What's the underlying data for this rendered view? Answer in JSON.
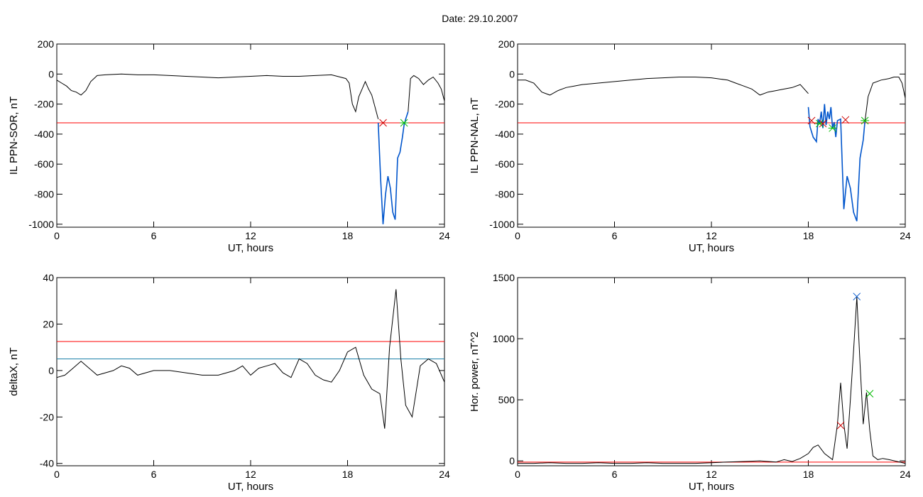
{
  "header": {
    "date_label": "Date:  29.10.2007"
  },
  "chart_data": [
    {
      "id": "il-ppn-sor",
      "type": "line",
      "ylabel": "IL PPN-SOR, nT",
      "xlabel": "UT, hours",
      "xlim": [
        0,
        24
      ],
      "ylim": [
        -1020,
        200
      ],
      "xticks": [
        0,
        6,
        12,
        18,
        24
      ],
      "yticks": [
        -1000,
        -800,
        -600,
        -400,
        -200,
        0,
        200
      ],
      "threshold": {
        "value": -325,
        "color": "#ff0000"
      },
      "series": [
        {
          "color": "#000000",
          "x": [
            0,
            0.3,
            0.6,
            0.9,
            1.2,
            1.5,
            1.8,
            2.1,
            2.5,
            3,
            4,
            5,
            6,
            7,
            8,
            9,
            10,
            11,
            12,
            13,
            14,
            15,
            16,
            17,
            17.9,
            18.1,
            18.3,
            18.5,
            18.7,
            18.9,
            19.1,
            19.3,
            19.5,
            19.7,
            19.9
          ],
          "y": [
            -40,
            -60,
            -80,
            -110,
            -120,
            -140,
            -110,
            -50,
            -10,
            -5,
            0,
            -5,
            -5,
            -10,
            -15,
            -20,
            -25,
            -20,
            -15,
            -10,
            -15,
            -15,
            -10,
            -5,
            -30,
            -60,
            -200,
            -250,
            -150,
            -100,
            -50,
            -100,
            -140,
            -220,
            -300
          ]
        },
        {
          "color": "#0055cc",
          "x": [
            19.9,
            20.05,
            20.2,
            20.35,
            20.5,
            20.65,
            20.8,
            20.95,
            21.1,
            21.25,
            21.4,
            21.5,
            21.6,
            21.75
          ],
          "y": [
            -325,
            -700,
            -1000,
            -800,
            -680,
            -760,
            -920,
            -970,
            -560,
            -520,
            -420,
            -340,
            -300,
            -250
          ]
        },
        {
          "color": "#000000",
          "x": [
            21.75,
            21.9,
            22.1,
            22.4,
            22.7,
            23,
            23.3,
            23.6,
            23.8,
            24
          ],
          "y": [
            -250,
            -30,
            -10,
            -30,
            -70,
            -40,
            -20,
            -60,
            -100,
            -180
          ]
        }
      ],
      "markers": [
        {
          "x": 20.2,
          "y": -325,
          "symbol": "x",
          "color": "#cc0000"
        },
        {
          "x": 21.5,
          "y": -325,
          "symbol": "star",
          "color": "#00bb00"
        }
      ]
    },
    {
      "id": "il-ppn-nal",
      "type": "line",
      "ylabel": "IL PPN-NAL, nT",
      "xlabel": "UT, hours",
      "xlim": [
        0,
        24
      ],
      "ylim": [
        -1020,
        200
      ],
      "xticks": [
        0,
        6,
        12,
        18,
        24
      ],
      "yticks": [
        -1000,
        -800,
        -600,
        -400,
        -200,
        0,
        200
      ],
      "threshold": {
        "value": -325,
        "color": "#ff0000"
      },
      "series": [
        {
          "color": "#000000",
          "x": [
            0,
            0.5,
            1,
            1.5,
            2,
            2.5,
            3,
            3.5,
            4,
            5,
            6,
            7,
            8,
            9,
            10,
            11,
            12,
            13,
            13.5,
            14,
            14.5,
            15,
            15.5,
            16,
            16.5,
            17,
            17.5,
            18
          ],
          "y": [
            -40,
            -40,
            -60,
            -120,
            -140,
            -110,
            -90,
            -80,
            -70,
            -60,
            -50,
            -40,
            -30,
            -25,
            -20,
            -20,
            -25,
            -40,
            -60,
            -80,
            -100,
            -140,
            -120,
            -110,
            -100,
            -90,
            -70,
            -130
          ]
        },
        {
          "color": "#0055cc",
          "x": [
            18,
            18.1,
            18.3,
            18.5,
            18.6,
            18.7,
            18.8,
            18.9,
            19,
            19.1,
            19.2,
            19.3,
            19.4,
            19.5,
            19.6,
            19.7,
            19.8,
            20,
            20.2,
            20.4,
            20.6,
            20.8,
            21,
            21.2,
            21.4,
            21.5
          ],
          "y": [
            -220,
            -350,
            -420,
            -450,
            -300,
            -330,
            -250,
            -360,
            -200,
            -340,
            -250,
            -300,
            -220,
            -360,
            -320,
            -420,
            -310,
            -300,
            -900,
            -680,
            -760,
            -920,
            -980,
            -560,
            -440,
            -320
          ]
        },
        {
          "color": "#000000",
          "x": [
            21.5,
            21.7,
            22,
            22.5,
            23,
            23.3,
            23.6,
            23.8,
            24
          ],
          "y": [
            -320,
            -150,
            -60,
            -40,
            -30,
            -20,
            -20,
            -60,
            -160
          ]
        }
      ],
      "markers": [
        {
          "x": 18.2,
          "y": -310,
          "symbol": "x",
          "color": "#cc0000"
        },
        {
          "x": 18.7,
          "y": -330,
          "symbol": "star",
          "color": "#00bb00"
        },
        {
          "x": 18.9,
          "y": -330,
          "symbol": "x",
          "color": "#cc0000"
        },
        {
          "x": 19.5,
          "y": -360,
          "symbol": "star",
          "color": "#00bb00"
        },
        {
          "x": 20.3,
          "y": -305,
          "symbol": "x",
          "color": "#cc0000"
        },
        {
          "x": 21.5,
          "y": -310,
          "symbol": "star",
          "color": "#00bb00"
        }
      ]
    },
    {
      "id": "deltax",
      "type": "line",
      "ylabel": "deltaX, nT",
      "xlabel": "UT, hours",
      "xlim": [
        0,
        24
      ],
      "ylim": [
        -41,
        40
      ],
      "xticks": [
        0,
        6,
        12,
        18,
        24
      ],
      "yticks": [
        -40,
        -20,
        0,
        20,
        40
      ],
      "threshold": {
        "value": 12.5,
        "color": "#ff0000"
      },
      "threshold2": {
        "value": 5,
        "color": "#1a7fa8"
      },
      "series": [
        {
          "color": "#000000",
          "x": [
            0,
            0.5,
            1,
            1.5,
            2,
            2.5,
            3,
            3.5,
            4,
            4.5,
            5,
            5.5,
            6,
            7,
            8,
            9,
            10,
            11,
            11.5,
            12,
            12.5,
            13,
            13.5,
            14,
            14.5,
            15,
            15.5,
            16,
            16.5,
            17,
            17.5,
            18,
            18.5,
            19,
            19.5,
            20,
            20.3,
            20.6,
            21,
            21.3,
            21.6,
            22,
            22.5,
            23,
            23.5,
            24
          ],
          "y": [
            -3,
            -2,
            1,
            4,
            1,
            -2,
            -1,
            0,
            2,
            1,
            -2,
            -1,
            0,
            0,
            -1,
            -2,
            -2,
            0,
            2,
            -2,
            1,
            2,
            3,
            -1,
            -3,
            5,
            3,
            -2,
            -4,
            -5,
            0,
            8,
            10,
            -2,
            -8,
            -10,
            -25,
            10,
            35,
            5,
            -15,
            -20,
            2,
            5,
            3,
            -5
          ]
        }
      ],
      "markers": []
    },
    {
      "id": "hor-power",
      "type": "line",
      "ylabel": "Hor. power, nT^2",
      "xlabel": "UT, hours",
      "xlim": [
        0,
        24
      ],
      "ylim": [
        -40,
        1500
      ],
      "xticks": [
        0,
        6,
        12,
        18,
        24
      ],
      "yticks": [
        0,
        500,
        1000,
        1500
      ],
      "threshold": {
        "value": -10,
        "color": "#ff0000"
      },
      "series": [
        {
          "color": "#000000",
          "x": [
            0,
            1,
            2,
            3,
            4,
            5,
            6,
            7,
            8,
            9,
            10,
            11,
            12,
            13,
            14,
            15,
            16,
            16.5,
            17,
            17.5,
            18,
            18.3,
            18.6,
            19,
            19.5,
            19.8,
            20,
            20.2,
            20.4,
            20.6,
            20.8,
            21,
            21.2,
            21.4,
            21.6,
            21.8,
            22,
            22.3,
            22.6,
            23,
            23.5,
            24
          ],
          "y": [
            -20,
            -20,
            -15,
            -20,
            -20,
            -15,
            -20,
            -20,
            -15,
            -20,
            -20,
            -20,
            -15,
            -10,
            -5,
            0,
            -10,
            10,
            -5,
            20,
            60,
            110,
            130,
            60,
            10,
            300,
            640,
            300,
            100,
            500,
            900,
            1340,
            800,
            300,
            560,
            250,
            40,
            10,
            20,
            10,
            -5,
            -20
          ]
        }
      ],
      "markers": [
        {
          "x": 20.0,
          "y": 290,
          "symbol": "x",
          "color": "#cc0000"
        },
        {
          "x": 21.0,
          "y": 1345,
          "symbol": "x",
          "color": "#0055cc"
        },
        {
          "x": 21.8,
          "y": 550,
          "symbol": "x",
          "color": "#00bb00"
        }
      ]
    }
  ]
}
